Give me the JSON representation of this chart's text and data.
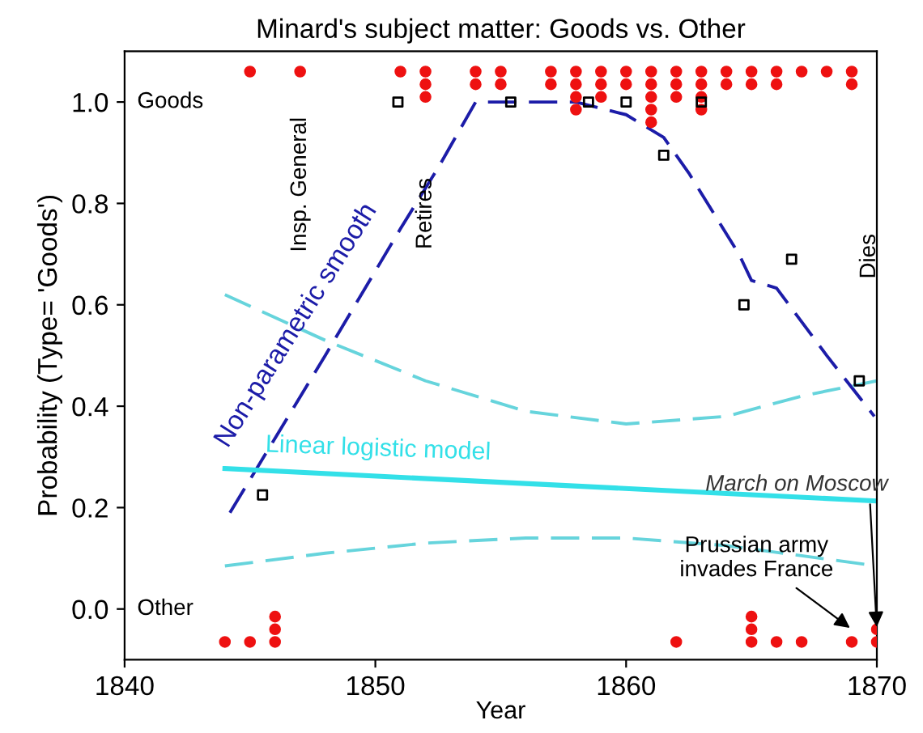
{
  "chart_data": {
    "type": "scatter",
    "title": "Minard's subject matter: Goods vs. Other",
    "xlabel": "Year",
    "ylabel": "Probability (Type= 'Goods')",
    "xlim": [
      1840,
      1870
    ],
    "xticks": [
      1840,
      1850,
      1860,
      1870
    ],
    "ylim": [
      -0.1,
      1.1
    ],
    "yticks": [
      {
        "value": 0,
        "label": "0.0"
      },
      0.2,
      0.4,
      0.6,
      0.8,
      {
        "value": 1,
        "label": "1.0"
      }
    ],
    "grid": false,
    "legend": false,
    "series": [
      {
        "marker": "circle",
        "color": "#ee1111",
        "x": [
          1845,
          1847,
          1851,
          1852,
          1852,
          1852,
          1854,
          1854,
          1855,
          1855,
          1857,
          1857,
          1858,
          1858,
          1858,
          1858,
          1859,
          1859,
          1859,
          1860,
          1860,
          1861,
          1861,
          1861,
          1861,
          1861,
          1862,
          1862,
          1862,
          1863,
          1863,
          1863,
          1863,
          1864,
          1864,
          1865,
          1865,
          1866,
          1866,
          1867,
          1868,
          1869,
          1869
        ],
        "values": [
          1.06,
          1.06,
          1.06,
          1.06,
          1.035,
          1.01,
          1.06,
          1.035,
          1.06,
          1.035,
          1.06,
          1.035,
          1.06,
          1.035,
          1.01,
          0.985,
          1.06,
          1.035,
          1.01,
          1.06,
          1.035,
          1.06,
          1.035,
          1.01,
          0.985,
          0.96,
          1.06,
          1.035,
          1.01,
          1.06,
          1.035,
          1.01,
          0.985,
          1.06,
          1.035,
          1.06,
          1.035,
          1.06,
          1.035,
          1.06,
          1.06,
          1.06,
          1.035
        ]
      },
      {
        "marker": "circle",
        "color": "#ee1111",
        "x": [
          1844,
          1845,
          1846,
          1846,
          1846,
          1862,
          1865,
          1865,
          1865,
          1866,
          1867,
          1869,
          1870,
          1870
        ],
        "values": [
          -0.065,
          -0.065,
          -0.065,
          -0.04,
          -0.015,
          -0.065,
          -0.065,
          -0.04,
          -0.015,
          -0.065,
          -0.065,
          -0.065,
          -0.065,
          -0.04
        ]
      },
      {
        "marker": "square",
        "color": "#000000",
        "x": [
          1845.5,
          1850.9,
          1855.4,
          1858.5,
          1860.0,
          1861.5,
          1863.0,
          1864.7,
          1866.6,
          1869.3
        ],
        "values": [
          0.225,
          1.0,
          1.0,
          1.0,
          1.0,
          0.895,
          1.0,
          0.6,
          0.69,
          0.45
        ]
      },
      {
        "type": "line",
        "line_style": "dashed",
        "marker": "none",
        "color": "#1c1ca8",
        "x": [
          1844.2,
          1848,
          1851,
          1852.5,
          1854,
          1858,
          1860,
          1861.5,
          1862.5,
          1864.5,
          1865,
          1866,
          1868,
          1869.9
        ],
        "values": [
          0.19,
          0.5,
          0.75,
          0.87,
          1.0,
          1.0,
          0.975,
          0.93,
          0.86,
          0.7,
          0.648,
          0.633,
          0.5,
          0.38
        ]
      },
      {
        "type": "line",
        "line_style": "solid",
        "marker": "none",
        "color": "#33e0e8",
        "x": [
          1844,
          1870
        ],
        "values": [
          0.277,
          0.213
        ]
      },
      {
        "type": "line",
        "line_style": "dashed",
        "marker": "none",
        "color": "#66d4dc",
        "x": [
          1844,
          1848,
          1852,
          1856,
          1860,
          1864,
          1867,
          1870
        ],
        "values": [
          0.62,
          0.53,
          0.45,
          0.39,
          0.365,
          0.38,
          0.42,
          0.45
        ]
      },
      {
        "type": "line",
        "line_style": "dashed",
        "marker": "none",
        "color": "#66d4dc",
        "x": [
          1844,
          1848,
          1852,
          1856,
          1860,
          1864,
          1867,
          1870
        ],
        "values": [
          0.085,
          0.11,
          0.13,
          0.14,
          0.14,
          0.125,
          0.105,
          0.085
        ]
      }
    ],
    "annotations": [
      "Goods",
      "Other",
      "Insp. General",
      "Retires",
      "Dies",
      "Non-parametric smooth",
      "Linear logistic model",
      {
        "text": "March on Moscow",
        "x": 1870,
        "y": -0.04
      },
      {
        "text": "Prussian army\ninvades France",
        "x": 1869,
        "y": -0.04
      }
    ]
  }
}
